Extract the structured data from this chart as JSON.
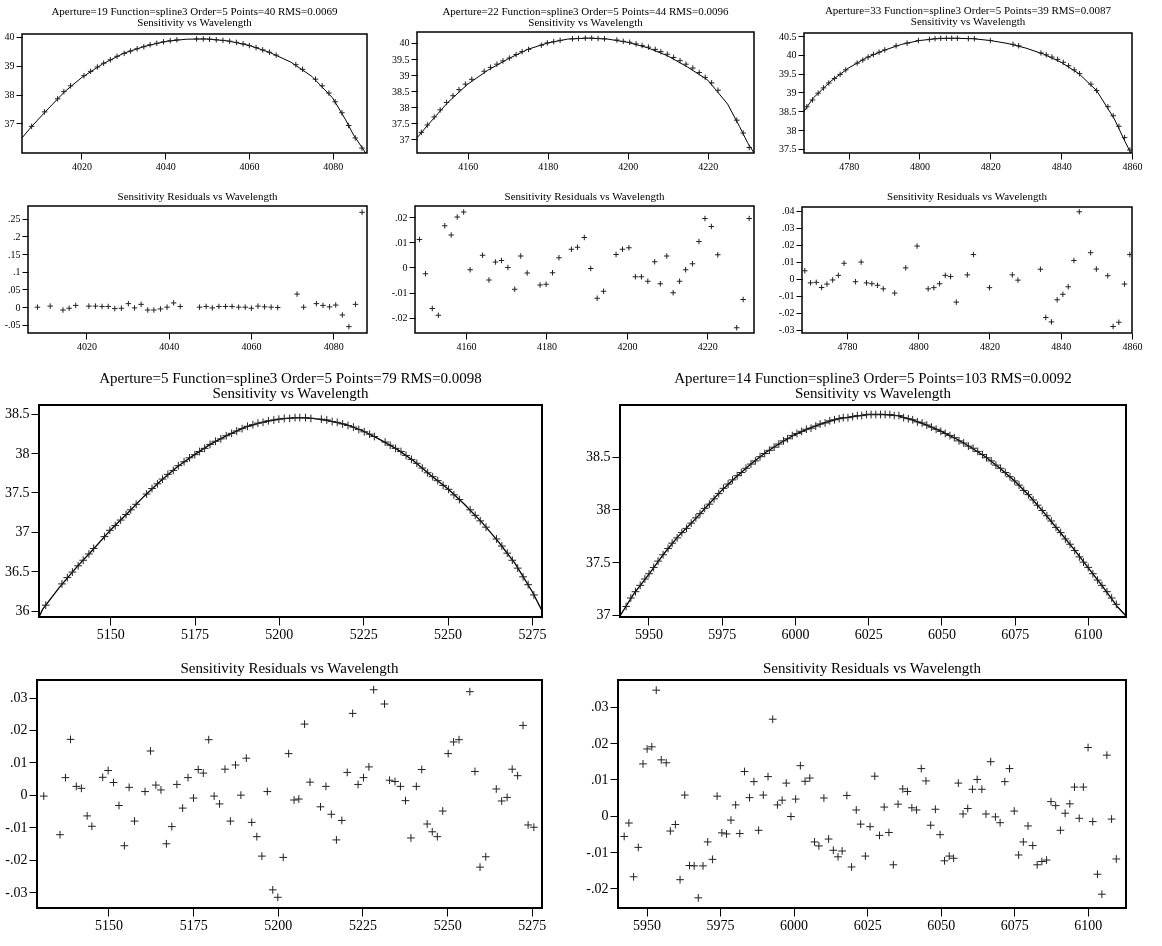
{
  "chart_data": [
    {
      "type": "scatter",
      "title": "Aperture=19  Function=spline3  Order=5  Points=40  RMS=0.0069",
      "subtitle": "Sensitivity vs Wavelength",
      "xlim": [
        4005.8,
        4088.2
      ],
      "ylim": [
        35.98,
        40.09
      ],
      "xticks": [
        4020,
        4040,
        4060,
        4080
      ],
      "yticks": [
        37,
        38,
        39,
        40
      ],
      "series": [
        {
          "type": "line",
          "color": "#000000",
          "x": [
            4005.8,
            4008,
            4012,
            4016,
            4020,
            4025,
            4030,
            4035,
            4040,
            4045,
            4050,
            4055,
            4060,
            4065,
            4070,
            4075,
            4080,
            4083,
            4085,
            4087.8
          ],
          "values": [
            36.5,
            36.88,
            37.5,
            38.1,
            38.58,
            39.05,
            39.42,
            39.66,
            39.83,
            39.91,
            39.92,
            39.85,
            39.7,
            39.45,
            39.12,
            38.63,
            37.88,
            37.15,
            36.6,
            36.0
          ]
        },
        {
          "type": "scatter",
          "marker": "cross",
          "color": "#222222",
          "x": [
            4008.1,
            4011.2,
            4014.3,
            4015.8,
            4017.4,
            4020.6,
            4022.2,
            4023.8,
            4025.3,
            4026.9,
            4028.5,
            4030.2,
            4031.7,
            4033.3,
            4034.9,
            4036.4,
            4038,
            4039.6,
            4041.2,
            4042.8,
            4047.5,
            4049.1,
            4050.6,
            4052.2,
            4053.8,
            4055.4,
            4057,
            4058.6,
            4060.1,
            4061.7,
            4063.3,
            4064.9,
            4066.5,
            4071.2,
            4072.8,
            4075.9,
            4077.5,
            4079.1,
            4080.6,
            4082.2,
            4083.8,
            4085.4,
            4087
          ],
          "values": [
            36.9,
            37.4,
            37.85,
            38.1,
            38.3,
            38.65,
            38.8,
            38.95,
            39.08,
            39.2,
            39.32,
            39.42,
            39.5,
            39.58,
            39.65,
            39.72,
            39.77,
            39.82,
            39.86,
            39.89,
            39.92,
            39.92,
            39.91,
            39.89,
            39.87,
            39.84,
            39.8,
            39.75,
            39.69,
            39.62,
            39.54,
            39.46,
            39.36,
            39.03,
            38.87,
            38.53,
            38.3,
            38.05,
            37.75,
            37.37,
            36.93,
            36.5,
            36.15
          ]
        }
      ]
    },
    {
      "type": "scatter",
      "title": "Aperture=22  Function=spline3  Order=5  Points=44  RMS=0.0096",
      "subtitle": "Sensitivity vs Wavelength",
      "xlim": [
        4147.3,
        4231.6
      ],
      "ylim": [
        36.58,
        40.34
      ],
      "xticks": [
        4160,
        4180,
        4200,
        4220
      ],
      "yticks": [
        37,
        37.5,
        38,
        38.5,
        39,
        39.5,
        40
      ],
      "series": [
        {
          "type": "line",
          "color": "#000000",
          "x": [
            4147.3,
            4150,
            4155,
            4160,
            4165,
            4170,
            4175,
            4180,
            4185,
            4190,
            4195,
            4200,
            4205,
            4210,
            4215,
            4220,
            4222,
            4225,
            4228,
            4230,
            4231.6
          ],
          "values": [
            37.05,
            37.45,
            38.15,
            38.72,
            39.15,
            39.5,
            39.8,
            40.0,
            40.12,
            40.15,
            40.12,
            40.02,
            39.85,
            39.6,
            39.25,
            38.85,
            38.55,
            38.1,
            37.4,
            36.9,
            36.58
          ]
        },
        {
          "type": "scatter",
          "marker": "cross",
          "color": "#222222",
          "x": [
            4148.4,
            4149.9,
            4151.6,
            4153.1,
            4154.7,
            4156.3,
            4157.8,
            4159.4,
            4161,
            4164.1,
            4165.7,
            4167.3,
            4168.8,
            4170.4,
            4172.1,
            4173.6,
            4175.2,
            4178.4,
            4179.9,
            4181.5,
            4183.1,
            4186.2,
            4187.7,
            4189.4,
            4191,
            4192.6,
            4194.2,
            4197.3,
            4198.9,
            4200.5,
            4202.1,
            4203.6,
            4205.2,
            4206.9,
            4208.3,
            4209.9,
            4211.5,
            4213.1,
            4214.6,
            4216.3,
            4217.9,
            4219.4,
            4221,
            4222.6,
            4227.3,
            4228.9,
            4230.4
          ],
          "values": [
            37.22,
            37.45,
            37.7,
            37.92,
            38.15,
            38.36,
            38.55,
            38.72,
            38.87,
            39.12,
            39.24,
            39.34,
            39.44,
            39.53,
            39.64,
            39.73,
            39.8,
            39.93,
            40.0,
            40.04,
            40.08,
            40.13,
            40.14,
            40.15,
            40.15,
            40.14,
            40.13,
            40.09,
            40.05,
            40.02,
            39.97,
            39.92,
            39.87,
            39.8,
            39.73,
            39.65,
            39.55,
            39.45,
            39.34,
            39.22,
            39.08,
            38.93,
            38.76,
            38.53,
            37.6,
            37.2,
            36.75
          ]
        }
      ]
    },
    {
      "type": "scatter",
      "title": "Aperture=33  Function=spline3  Order=5  Points=39  RMS=0.0087",
      "subtitle": "Sensitivity vs Wavelength",
      "xlim": [
        4767.4,
        4860
      ],
      "ylim": [
        37.39,
        40.58
      ],
      "xticks": [
        4780,
        4800,
        4820,
        4840,
        4860
      ],
      "yticks": [
        37.5,
        38,
        38.5,
        39,
        39.5,
        40,
        40.5
      ],
      "series": [
        {
          "type": "line",
          "color": "#000000",
          "x": [
            4767.4,
            4770,
            4775,
            4780,
            4785,
            4790,
            4795,
            4800,
            4805,
            4810,
            4815,
            4820,
            4825,
            4830,
            4835,
            4840,
            4845,
            4850,
            4855,
            4858,
            4859.6
          ],
          "values": [
            38.5,
            38.85,
            39.3,
            39.65,
            39.92,
            40.12,
            40.28,
            40.38,
            40.43,
            40.44,
            40.43,
            40.38,
            40.3,
            40.18,
            40.02,
            39.8,
            39.5,
            39.05,
            38.3,
            37.7,
            37.4
          ]
        },
        {
          "type": "scatter",
          "marker": "cross",
          "color": "#222222",
          "x": [
            4768.2,
            4769.8,
            4771.4,
            4772.9,
            4774.4,
            4776,
            4777.6,
            4779.2,
            4782.4,
            4784,
            4785.5,
            4787,
            4788.6,
            4790.2,
            4793.4,
            4796.5,
            4799.7,
            4802.8,
            4804.4,
            4806,
            4807.6,
            4809.1,
            4810.7,
            4813.8,
            4815.5,
            4820,
            4826.4,
            4828,
            4834.3,
            4835.8,
            4837.4,
            4839,
            4840.6,
            4842.1,
            4843.7,
            4845.2,
            4848.4,
            4850,
            4853.2,
            4854.7,
            4856.3,
            4857.9,
            4859.4
          ],
          "values": [
            38.62,
            38.8,
            38.98,
            39.12,
            39.25,
            39.37,
            39.48,
            39.6,
            39.78,
            39.86,
            39.94,
            40.01,
            40.07,
            40.13,
            40.24,
            40.31,
            40.38,
            40.41,
            40.43,
            40.44,
            40.44,
            40.44,
            40.44,
            40.43,
            40.43,
            40.38,
            40.28,
            40.24,
            40.05,
            40.0,
            39.94,
            39.88,
            39.8,
            39.71,
            39.6,
            39.5,
            39.22,
            39.05,
            38.62,
            38.38,
            38.1,
            37.8,
            37.47
          ]
        }
      ]
    },
    {
      "type": "scatter",
      "title": "Sensitivity Residuals vs Wavelength",
      "xlim": [
        4005.8,
        4088.2
      ],
      "ylim": [
        -0.073,
        0.286
      ],
      "xticks": [
        4020,
        4040,
        4060,
        4080
      ],
      "yticks": [
        {
          "value": 0.25,
          "label": ".25"
        },
        {
          "value": 0.2,
          "label": ".2"
        },
        {
          "value": 0.15,
          "label": ".15"
        },
        {
          "value": 0.1,
          "label": ".1"
        },
        {
          "value": 0.05,
          "label": ".05"
        },
        0,
        {
          "value": -0.05,
          "label": "-.05"
        }
      ],
      "marker": "cross",
      "series": [
        {
          "type": "scatter",
          "color": "#222222",
          "x": [
            4008.1,
            4011.2,
            4014.3,
            4015.8,
            4017.4,
            4020.6,
            4022.2,
            4023.8,
            4025.3,
            4026.9,
            4028.5,
            4030.2,
            4031.7,
            4033.3,
            4034.9,
            4036.4,
            4038,
            4039.6,
            4041.2,
            4042.8,
            4047.5,
            4049.1,
            4050.6,
            4052.2,
            4053.8,
            4055.4,
            4057,
            4058.6,
            4060.1,
            4061.7,
            4063.3,
            4064.9,
            4066.5,
            4071.2,
            4072.8,
            4075.9,
            4077.5,
            4079.1,
            4080.6,
            4082.2,
            4083.8,
            4085.4,
            4087
          ],
          "values": [
            0,
            0.003,
            -0.008,
            -0.003,
            0.005,
            0.003,
            0.003,
            0.002,
            0.002,
            -0.004,
            -0.003,
            0.01,
            -0.002,
            0.008,
            -0.008,
            -0.008,
            -0.005,
            0,
            0.012,
            0.002,
            0,
            0.002,
            -0.002,
            0.002,
            0.002,
            0.002,
            0,
            0,
            -0.003,
            0.003,
            0.001,
            0,
            -0.001,
            0.037,
            0,
            0.01,
            0.005,
            0.001,
            0.006,
            -0.022,
            -0.055,
            0.008,
            0.268
          ]
        }
      ]
    },
    {
      "type": "scatter",
      "title": "Sensitivity Residuals vs Wavelength",
      "xlim": [
        4147.3,
        4231.6
      ],
      "ylim": [
        -0.0262,
        0.0246
      ],
      "xticks": [
        4160,
        4180,
        4200,
        4220
      ],
      "yticks": [
        {
          "value": 0.02,
          "label": ".02"
        },
        {
          "value": 0.01,
          "label": ".01"
        },
        0,
        {
          "value": -0.01,
          "label": "-.01"
        },
        {
          "value": -0.02,
          "label": "-.02"
        }
      ],
      "marker": "cross",
      "series": [
        {
          "type": "scatter",
          "color": "#222222",
          "x": [
            4148.4,
            4149.9,
            4151.6,
            4153.1,
            4154.7,
            4156.3,
            4157.8,
            4159.4,
            4161,
            4164.1,
            4165.7,
            4167.3,
            4168.8,
            4170.4,
            4172.1,
            4173.6,
            4175.2,
            4178.4,
            4179.9,
            4181.5,
            4183.1,
            4186.2,
            4187.7,
            4189.4,
            4191,
            4192.6,
            4194.2,
            4197.3,
            4198.9,
            4200.5,
            4202.1,
            4203.6,
            4205.2,
            4206.9,
            4208.3,
            4209.9,
            4211.5,
            4213.1,
            4214.6,
            4216.3,
            4217.9,
            4219.4,
            4221,
            4222.6,
            4227.3,
            4228.9,
            4230.4
          ],
          "values": [
            0.0112,
            -0.0025,
            -0.0164,
            -0.0191,
            0.0167,
            0.013,
            0.0202,
            0.0222,
            -0.0009,
            0.0049,
            -0.005,
            0.0022,
            0.0028,
            0,
            -0.0087,
            0.0046,
            -0.0022,
            -0.007,
            -0.0067,
            -0.0021,
            0.0039,
            0.0073,
            0.0081,
            0.012,
            -0.0004,
            -0.0123,
            -0.0095,
            0.0052,
            0.0073,
            0.0079,
            -0.0037,
            -0.0037,
            -0.0055,
            0.0023,
            -0.0065,
            0.0046,
            -0.0101,
            -0.0055,
            -0.0009,
            0.0015,
            0.0104,
            0.0196,
            0.0164,
            0.0051,
            -0.0241,
            -0.0128,
            0.0196
          ]
        }
      ]
    },
    {
      "type": "scatter",
      "title": "Sensitivity Residuals vs Wavelength",
      "xlim": [
        4767.4,
        4860
      ],
      "ylim": [
        -0.0318,
        0.0421
      ],
      "xticks": [
        4780,
        4800,
        4820,
        4840,
        4860
      ],
      "yticks": [
        {
          "value": 0.04,
          "label": ".04"
        },
        {
          "value": 0.03,
          "label": ".03"
        },
        {
          "value": 0.02,
          "label": ".02"
        },
        {
          "value": 0.01,
          "label": ".01"
        },
        0,
        {
          "value": -0.01,
          "label": "-.01"
        },
        {
          "value": -0.02,
          "label": "-.02"
        },
        {
          "value": -0.03,
          "label": "-.03"
        }
      ],
      "marker": "cross",
      "series": [
        {
          "type": "scatter",
          "color": "#222222",
          "x": [
            4768.2,
            4769.8,
            4771.4,
            4772.9,
            4774.4,
            4776,
            4777.6,
            4779.2,
            4782.4,
            4784,
            4785.5,
            4787,
            4788.6,
            4790.2,
            4793.4,
            4796.5,
            4799.7,
            4802.8,
            4804.4,
            4806,
            4807.6,
            4809.1,
            4810.7,
            4813.8,
            4815.5,
            4820,
            4826.4,
            4828,
            4834.3,
            4835.8,
            4837.4,
            4839,
            4840.6,
            4842.1,
            4843.7,
            4845.2,
            4848.4,
            4850,
            4853.2,
            4854.7,
            4856.3,
            4857.9,
            4859.4
          ],
          "values": [
            0.0047,
            -0.0024,
            -0.0021,
            -0.0051,
            -0.0031,
            -0.0007,
            0.002,
            0.0091,
            -0.0017,
            0.0098,
            -0.0024,
            -0.0029,
            -0.0038,
            -0.0059,
            -0.0084,
            0.0064,
            0.0192,
            -0.0059,
            -0.0052,
            -0.0029,
            0.002,
            0.0013,
            -0.0137,
            0.0023,
            0.0142,
            -0.0052,
            0.0023,
            -0.0008,
            0.0056,
            -0.0227,
            -0.0253,
            -0.0123,
            -0.0091,
            -0.0047,
            0.0107,
            0.0393,
            0.0153,
            0.0057,
            0.0018,
            -0.028,
            -0.0255,
            -0.0031,
            0.0142
          ]
        }
      ]
    },
    {
      "type": "scatter",
      "title": "Aperture=5  Function=spline3  Order=5  Points=79  RMS=0.0098",
      "subtitle": "Sensitivity vs Wavelength",
      "xlim": [
        5128.9,
        5278
      ],
      "ylim": [
        35.92,
        38.61
      ],
      "xticks": [
        5150,
        5175,
        5200,
        5225,
        5250,
        5275
      ],
      "yticks": [
        36,
        36.5,
        37,
        37.5,
        38,
        38.5
      ],
      "series": [
        {
          "type": "line",
          "color": "#000000",
          "x": [
            5128.9,
            5130,
            5135,
            5140,
            5145,
            5150,
            5155,
            5160,
            5165,
            5170,
            5175,
            5180,
            5185,
            5190,
            5195,
            5200,
            5205,
            5210,
            5215,
            5220,
            5225,
            5230,
            5235,
            5240,
            5245,
            5250,
            5255,
            5260,
            5265,
            5270,
            5275,
            5278
          ],
          "values": [
            35.92,
            36.02,
            36.3,
            36.55,
            36.78,
            37.02,
            37.23,
            37.45,
            37.65,
            37.83,
            37.98,
            38.12,
            38.23,
            38.33,
            38.39,
            38.43,
            38.45,
            38.44,
            38.41,
            38.36,
            38.28,
            38.17,
            38.05,
            37.9,
            37.72,
            37.55,
            37.35,
            37.13,
            36.88,
            36.6,
            36.25,
            36.0
          ]
        },
        {
          "type": "scatter",
          "marker": "cross",
          "color": "#222222",
          "x": [
            5130.9,
            5135.7,
            5137.3,
            5138.8,
            5140.5,
            5142,
            5143.7,
            5145.1,
            5148.3,
            5149.9,
            5151.5,
            5153.1,
            5154.7,
            5156.1,
            5157.7,
            5160.8,
            5162.4,
            5164,
            5165.5,
            5167.1,
            5168.7,
            5170.2,
            5171.9,
            5173.5,
            5175.1,
            5176.5,
            5178,
            5179.6,
            5181.2,
            5182.8,
            5184.4,
            5186,
            5187.5,
            5189.1,
            5190.7,
            5192.3,
            5193.8,
            5195.3,
            5196.9,
            5198.5,
            5200,
            5201.6,
            5203.2,
            5204.8,
            5206.2,
            5207.9,
            5209.5,
            5212.6,
            5214.2,
            5215.8,
            5217.3,
            5218.9,
            5220.5,
            5222.1,
            5223.7,
            5225.3,
            5226.9,
            5228.3,
            5231.5,
            5233,
            5234.6,
            5236.2,
            5237.7,
            5239.3,
            5240.9,
            5242.5,
            5244.1,
            5245.6,
            5247.1,
            5248.7,
            5250.3,
            5251.9,
            5253.5,
            5256.7,
            5258.2,
            5259.7,
            5261.4,
            5264.5,
            5266.1,
            5267.7,
            5269.2,
            5270.8,
            5272.4,
            5273.9,
            5275.6
          ],
          "values": [
            36.07,
            36.34,
            36.42,
            36.49,
            36.57,
            36.64,
            36.72,
            36.79,
            36.94,
            37.02,
            37.08,
            37.15,
            37.22,
            37.28,
            37.35,
            37.48,
            37.55,
            37.61,
            37.67,
            37.73,
            37.78,
            37.84,
            37.89,
            37.94,
            37.98,
            38.02,
            38.06,
            38.11,
            38.15,
            38.18,
            38.22,
            38.25,
            38.28,
            38.31,
            38.34,
            38.36,
            38.38,
            38.39,
            38.41,
            38.42,
            38.43,
            38.44,
            38.44,
            38.45,
            38.45,
            38.45,
            38.44,
            38.43,
            38.42,
            38.4,
            38.39,
            38.37,
            38.35,
            38.33,
            38.3,
            38.27,
            38.24,
            38.21,
            38.14,
            38.1,
            38.06,
            38.02,
            37.97,
            37.92,
            37.87,
            37.81,
            37.75,
            37.7,
            37.65,
            37.59,
            37.54,
            37.47,
            37.41,
            37.28,
            37.21,
            37.14,
            37.06,
            36.91,
            36.82,
            36.73,
            36.64,
            36.54,
            36.43,
            36.33,
            36.2
          ]
        }
      ]
    },
    {
      "type": "scatter",
      "title": "Aperture=14  Function=spline3  Order=5  Points=103  RMS=0.0092",
      "subtitle": "Sensitivity vs Wavelength",
      "xlim": [
        5940.3,
        6113
      ],
      "ylim": [
        36.98,
        38.99
      ],
      "xticks": [
        5950,
        5975,
        6000,
        6025,
        6050,
        6075,
        6100
      ],
      "yticks": [
        37,
        37.5,
        38,
        38.5
      ],
      "series": [
        {
          "type": "line",
          "color": "#000000",
          "x": [
            5940.3,
            5945,
            5950,
            5955,
            5960,
            5965,
            5970,
            5975,
            5980,
            5985,
            5990,
            5995,
            6000,
            6005,
            6010,
            6015,
            6020,
            6025,
            6030,
            6035,
            6040,
            6045,
            6050,
            6055,
            6060,
            6065,
            6070,
            6075,
            6080,
            6085,
            6090,
            6095,
            6100,
            6105,
            6110,
            6113
          ],
          "values": [
            36.99,
            37.2,
            37.38,
            37.57,
            37.74,
            37.88,
            38.03,
            38.18,
            38.31,
            38.43,
            38.54,
            38.63,
            38.71,
            38.77,
            38.82,
            38.86,
            38.88,
            38.9,
            38.9,
            38.89,
            38.85,
            38.8,
            38.74,
            38.67,
            38.59,
            38.5,
            38.39,
            38.27,
            38.13,
            37.97,
            37.8,
            37.63,
            37.45,
            37.27,
            37.08,
            36.99
          ]
        },
        {
          "type": "scatter",
          "marker": "cross",
          "color": "#222222",
          "x": [
            5942.4,
            5944,
            5945.6,
            5947.2,
            5948.8,
            5950.2,
            5951.8,
            5953.3,
            5955,
            5956.7,
            5958.1,
            5959.8,
            5961.4,
            5963,
            5964.6,
            5966.2,
            5967.6,
            5969.2,
            5970.8,
            5972.4,
            5974,
            5975.6,
            5977.2,
            5978.7,
            5980.3,
            5981.7,
            5983.3,
            5985,
            5986.5,
            5988.1,
            5989.7,
            5991.3,
            5992.9,
            5994.5,
            5996.1,
            5997.5,
            5999.1,
            6000.7,
            6002.3,
            6003.9,
            6005.5,
            6007.1,
            6008.6,
            6010.3,
            6011.9,
            6013.5,
            6015.1,
            6016.5,
            6018.1,
            6019.7,
            6021.3,
            6022.8,
            6024.4,
            6026,
            6027.6,
            6029.2,
            6030.8,
            6032.4,
            6033.9,
            6035.5,
            6037.1,
            6038.7,
            6040.2,
            6041.8,
            6043.4,
            6045,
            6046.6,
            6048.2,
            6049.8,
            6051.3,
            6052.9,
            6054.4,
            6056,
            6057.6,
            6059.2,
            6060.8,
            6062.4,
            6064,
            6065.4,
            6067,
            6068.6,
            6070.2,
            6071.8,
            6073.4,
            6075,
            6076.5,
            6078.1,
            6079.7,
            6081.3,
            6082.8,
            6084.4,
            6086,
            6087.5,
            6089.1,
            6090.7,
            6092.3,
            6093.9,
            6095.5,
            6097.1,
            6098.5,
            6100.1,
            6101.7,
            6103.3,
            6104.8,
            6106.5,
            6108.1,
            6109.7
          ],
          "values": [
            37.08,
            37.16,
            37.22,
            37.28,
            37.34,
            37.39,
            37.45,
            37.51,
            37.57,
            37.63,
            37.68,
            37.73,
            37.78,
            37.82,
            37.87,
            37.92,
            37.96,
            38.01,
            38.05,
            38.1,
            38.15,
            38.2,
            38.24,
            38.28,
            38.32,
            38.35,
            38.39,
            38.43,
            38.46,
            38.5,
            38.53,
            38.56,
            38.59,
            38.62,
            38.65,
            38.67,
            38.7,
            38.72,
            38.74,
            38.76,
            38.77,
            38.79,
            38.81,
            38.82,
            38.84,
            38.85,
            38.86,
            38.87,
            38.87,
            38.88,
            38.89,
            38.89,
            38.9,
            38.9,
            38.9,
            38.9,
            38.9,
            38.9,
            38.89,
            38.89,
            38.87,
            38.86,
            38.85,
            38.83,
            38.82,
            38.8,
            38.78,
            38.76,
            38.74,
            38.72,
            38.7,
            38.68,
            38.65,
            38.63,
            38.6,
            38.58,
            38.55,
            38.52,
            38.49,
            38.46,
            38.42,
            38.39,
            38.35,
            38.31,
            38.27,
            38.23,
            38.18,
            38.14,
            38.09,
            38.04,
            37.99,
            37.94,
            37.89,
            37.83,
            37.78,
            37.72,
            37.67,
            37.61,
            37.55,
            37.5,
            37.45,
            37.39,
            37.33,
            37.28,
            37.22,
            37.16,
            37.1
          ]
        }
      ]
    },
    {
      "type": "scatter",
      "title": "Sensitivity Residuals vs Wavelength",
      "xlim": [
        5128.9,
        5278
      ],
      "ylim": [
        -0.0349,
        0.0354
      ],
      "xticks": [
        5150,
        5175,
        5200,
        5225,
        5250,
        5275
      ],
      "yticks": [
        {
          "value": 0.03,
          "label": ".03"
        },
        {
          "value": 0.02,
          "label": ".02"
        },
        {
          "value": 0.01,
          "label": ".01"
        },
        0,
        {
          "value": -0.01,
          "label": "-.01"
        },
        {
          "value": -0.02,
          "label": "-.02"
        },
        {
          "value": -0.03,
          "label": "-.03"
        }
      ],
      "marker": "cross",
      "series": [
        {
          "type": "scatter",
          "color": "#222222",
          "x": [
            5130.9,
            5135.7,
            5137.3,
            5138.8,
            5140.5,
            5142,
            5143.7,
            5145.1,
            5148.3,
            5149.9,
            5151.5,
            5153.1,
            5154.7,
            5156.1,
            5157.7,
            5160.8,
            5162.4,
            5164,
            5165.5,
            5167.1,
            5168.7,
            5170.2,
            5171.9,
            5173.5,
            5175.1,
            5176.5,
            5178,
            5179.6,
            5181.2,
            5182.8,
            5184.4,
            5186,
            5187.5,
            5189.1,
            5190.7,
            5192.3,
            5193.8,
            5195.3,
            5196.9,
            5198.5,
            5200,
            5201.6,
            5203.2,
            5204.8,
            5206.2,
            5207.9,
            5209.5,
            5212.6,
            5214.2,
            5215.8,
            5217.3,
            5218.9,
            5220.5,
            5222.1,
            5223.7,
            5225.3,
            5226.9,
            5228.3,
            5231.5,
            5233,
            5234.6,
            5236.2,
            5237.7,
            5239.3,
            5240.9,
            5242.5,
            5244.1,
            5245.6,
            5247.1,
            5248.7,
            5250.3,
            5251.9,
            5253.5,
            5256.7,
            5258.2,
            5259.7,
            5261.4,
            5264.5,
            5266.1,
            5267.7,
            5269.2,
            5270.8,
            5272.4,
            5273.9,
            5275.6
          ],
          "values": [
            -0.0004,
            -0.0123,
            0.0053,
            0.0171,
            0.0026,
            0.002,
            -0.0065,
            -0.0097,
            0.0054,
            0.0075,
            0.0038,
            -0.0033,
            -0.0157,
            0.0023,
            -0.0081,
            0.001,
            0.0135,
            0.003,
            0.0015,
            -0.0151,
            -0.0098,
            0.0032,
            -0.0041,
            0.0053,
            -0.001,
            0.0078,
            0.0067,
            0.017,
            -0.0004,
            -0.0028,
            0.0079,
            -0.0081,
            0.0092,
            -0.0001,
            0.0113,
            -0.0085,
            -0.0129,
            -0.0189,
            0.001,
            -0.0293,
            -0.0316,
            -0.0193,
            0.0127,
            -0.0016,
            -0.0013,
            0.0218,
            0.0039,
            -0.0037,
            0.0026,
            -0.006,
            -0.0139,
            -0.0079,
            0.0069,
            0.0251,
            0.0032,
            0.0053,
            0.0086,
            0.0324,
            0.028,
            0.0045,
            0.0041,
            0.0026,
            -0.0018,
            -0.0133,
            0.0026,
            0.0078,
            -0.009,
            -0.0114,
            -0.0129,
            -0.005,
            0.0127,
            0.0163,
            0.017,
            0.0318,
            0.0072,
            -0.0223,
            -0.0191,
            0.0018,
            -0.0019,
            -0.0008,
            0.0079,
            0.0059,
            0.0214,
            -0.0093,
            -0.01
          ]
        }
      ]
    },
    {
      "type": "scatter",
      "title": "Sensitivity Residuals vs Wavelength",
      "xlim": [
        5940.3,
        6113
      ],
      "ylim": [
        -0.0254,
        0.0374
      ],
      "xticks": [
        5950,
        5975,
        6000,
        6025,
        6050,
        6075,
        6100
      ],
      "yticks": [
        {
          "value": 0.03,
          "label": ".03"
        },
        {
          "value": 0.02,
          "label": ".02"
        },
        {
          "value": 0.01,
          "label": ".01"
        },
        0,
        {
          "value": -0.01,
          "label": "-.01"
        },
        {
          "value": -0.02,
          "label": "-.02"
        }
      ],
      "marker": "cross",
      "series": [
        {
          "type": "scatter",
          "color": "#222222",
          "x": [
            5942.4,
            5944,
            5945.6,
            5947.2,
            5948.8,
            5950.2,
            5951.8,
            5953.3,
            5955,
            5956.7,
            5958.1,
            5959.8,
            5961.4,
            5963,
            5964.6,
            5966.2,
            5967.6,
            5969.2,
            5970.8,
            5972.4,
            5974,
            5975.6,
            5977.2,
            5978.7,
            5980.3,
            5981.7,
            5983.3,
            5985,
            5986.5,
            5988.1,
            5989.7,
            5991.3,
            5992.9,
            5994.5,
            5996.1,
            5997.5,
            5999.1,
            6000.7,
            6002.3,
            6003.9,
            6005.5,
            6007.1,
            6008.6,
            6010.3,
            6011.9,
            6013.5,
            6015.1,
            6016.5,
            6018.1,
            6019.7,
            6021.3,
            6022.8,
            6024.4,
            6026,
            6027.6,
            6029.2,
            6030.8,
            6032.4,
            6033.9,
            6035.5,
            6037.1,
            6038.7,
            6040.2,
            6041.8,
            6043.4,
            6045,
            6046.6,
            6048.2,
            6049.8,
            6051.3,
            6052.9,
            6054.4,
            6056,
            6057.6,
            6059.2,
            6060.8,
            6062.4,
            6064,
            6065.4,
            6067,
            6068.6,
            6070.2,
            6071.8,
            6073.4,
            6075,
            6076.5,
            6078.1,
            6079.7,
            6081.3,
            6082.8,
            6084.4,
            6086,
            6087.5,
            6089.1,
            6090.7,
            6092.3,
            6093.9,
            6095.5,
            6097.1,
            6098.5,
            6100.1,
            6101.7,
            6103.3,
            6104.8,
            6106.5,
            6108.1,
            6109.7
          ],
          "values": [
            -0.0057,
            -0.002,
            -0.0168,
            -0.0087,
            0.0143,
            0.0184,
            0.019,
            0.0346,
            0.0154,
            0.0146,
            -0.0042,
            -0.0024,
            -0.0176,
            0.0057,
            -0.0137,
            -0.0138,
            -0.0226,
            -0.0138,
            -0.0072,
            -0.012,
            0.0054,
            -0.0047,
            -0.005,
            -0.0012,
            0.003,
            -0.0049,
            0.0122,
            0.005,
            0.0094,
            -0.004,
            0.0057,
            0.0108,
            0.0266,
            0.003,
            0.0043,
            0.009,
            -0.0002,
            0.0046,
            0.0138,
            0.0095,
            0.0104,
            -0.0072,
            -0.0083,
            0.0049,
            -0.0064,
            -0.0095,
            -0.0113,
            -0.0097,
            0.0056,
            -0.0141,
            0.0016,
            -0.0023,
            -0.0111,
            -0.003,
            0.0109,
            -0.0054,
            0.0024,
            -0.0046,
            -0.0135,
            0.0032,
            0.0074,
            0.0067,
            0.0022,
            0.0016,
            0.013,
            0.0096,
            -0.0026,
            0.0018,
            -0.0052,
            -0.0124,
            -0.0111,
            -0.0117,
            0.009,
            0.0005,
            0.002,
            0.0073,
            0.01,
            0.0073,
            0.0005,
            0.0149,
            -0.0003,
            -0.0019,
            0.0094,
            0.013,
            0.0013,
            -0.0108,
            -0.0072,
            -0.0028,
            -0.0082,
            -0.0135,
            -0.0126,
            -0.0122,
            0.0039,
            0.0028,
            -0.004,
            0.0007,
            0.0033,
            0.0079,
            -0.0007,
            0.0079,
            0.0188,
            -0.0016,
            -0.0161,
            -0.0216,
            0.0167,
            -0.0009,
            -0.0119
          ]
        }
      ]
    }
  ]
}
